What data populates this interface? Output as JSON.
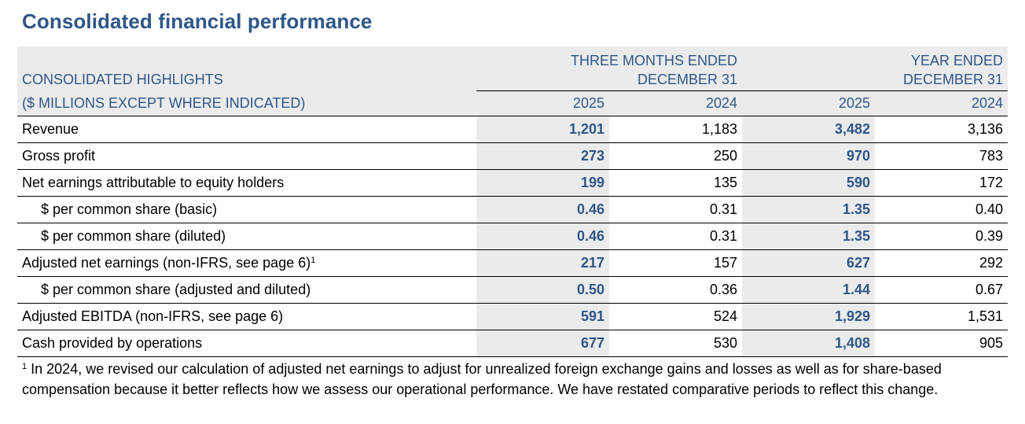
{
  "title": "Consolidated financial performance",
  "header": {
    "label_line1": "CONSOLIDATED HIGHLIGHTS",
    "label_line2": "($ MILLIONS EXCEPT WHERE INDICATED)",
    "three_months_line1": "THREE MONTHS ENDED",
    "three_months_line2": "DECEMBER 31",
    "year_line1": "YEAR ENDED",
    "year_line2": "DECEMBER 31",
    "years": [
      "2025",
      "2024",
      "2025",
      "2024"
    ]
  },
  "rows": [
    {
      "label": "Revenue",
      "values": [
        "1,201",
        "1,183",
        "3,482",
        "3,136"
      ]
    },
    {
      "label": "Gross profit",
      "values": [
        "273",
        "250",
        "970",
        "783"
      ]
    },
    {
      "label": "Net earnings attributable to equity holders",
      "values": [
        "199",
        "135",
        "590",
        "172"
      ]
    },
    {
      "label": "$ per common share (basic)",
      "values": [
        "0.46",
        "0.31",
        "1.35",
        "0.40"
      ]
    },
    {
      "label": "$ per common share (diluted)",
      "values": [
        "0.46",
        "0.31",
        "1.35",
        "0.39"
      ]
    },
    {
      "label": "Adjusted net earnings (non-IFRS, see page 6)",
      "sup": "1",
      "values": [
        "217",
        "157",
        "627",
        "292"
      ]
    },
    {
      "label": "$ per common share (adjusted and diluted)",
      "values": [
        "0.50",
        "0.36",
        "1.44",
        "0.67"
      ]
    },
    {
      "label": "Adjusted EBITDA (non-IFRS, see page 6)",
      "values": [
        "591",
        "524",
        "1,929",
        "1,531"
      ]
    },
    {
      "label": "Cash provided by operations",
      "values": [
        "677",
        "530",
        "1,408",
        "905"
      ]
    }
  ],
  "footnote": {
    "marker": "1",
    "text": "In 2024, we revised our calculation of adjusted net earnings to adjust for unrealized foreign exchange gains and losses as well as for share-based compensation because it better reflects how we assess our operational performance. We have restated comparative periods to reflect this change."
  }
}
